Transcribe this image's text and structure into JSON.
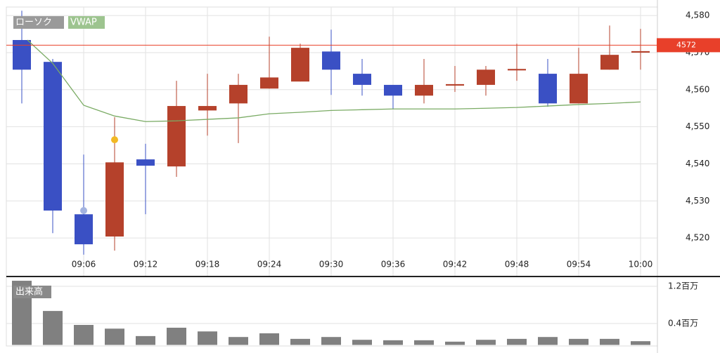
{
  "chart_data": [
    {
      "type": "candlestick",
      "categories": [
        null,
        null,
        "09:06",
        null,
        "09:12",
        null,
        "09:18",
        null,
        "09:24",
        null,
        "09:30",
        null,
        "09:36",
        null,
        "09:42",
        null,
        "09:48",
        null,
        "09:54",
        null,
        "10:00"
      ],
      "series": [
        {
          "name": "ローソク",
          "up_color": "#b5412b",
          "down_color": "#3a50c4",
          "open": [
            4573.4,
            4567.5,
            4526.4,
            4520.4,
            4541.2,
            4539.3,
            4554.4,
            4556.3,
            4560.3,
            4562.2,
            4570.3,
            4564.3,
            4561.3,
            4558.4,
            4561.1,
            4561.3,
            4565.2,
            4564.3,
            4556.3,
            4565.4,
            4570.0
          ],
          "high": [
            4581.3,
            4568.3,
            4542.5,
            4552.6,
            4545.4,
            4562.4,
            4564.3,
            4564.3,
            4574.3,
            4572.4,
            4576.2,
            4568.3,
            4561.3,
            4568.3,
            4566.4,
            4566.4,
            4572.4,
            4568.3,
            4571.3,
            4577.3,
            4576.4
          ],
          "low": [
            4556.3,
            4521.3,
            4515.5,
            4516.6,
            4526.4,
            4536.5,
            4547.6,
            4545.6,
            4560.3,
            4562.2,
            4558.6,
            4558.4,
            4554.8,
            4556.3,
            4559.4,
            4558.4,
            4562.4,
            4555.4,
            4556.3,
            4565.4,
            4565.4
          ],
          "close": [
            4565.4,
            4527.4,
            4518.3,
            4540.4,
            4539.5,
            4555.6,
            4555.6,
            4561.3,
            4563.3,
            4571.3,
            4565.4,
            4561.3,
            4558.4,
            4561.3,
            4561.5,
            4565.4,
            4565.6,
            4556.3,
            4564.3,
            4569.4,
            4570.4
          ]
        },
        {
          "name": "VWAP",
          "color": "#7aab64",
          "values": [
            4573.4,
            4567.1,
            4555.8,
            4552.9,
            4551.4,
            4551.6,
            4552.0,
            4552.4,
            4553.5,
            4553.9,
            4554.4,
            4554.6,
            4554.8,
            4554.8,
            4554.8,
            4555.0,
            4555.2,
            4555.6,
            4556.0,
            4556.3,
            4556.7
          ]
        }
      ],
      "markers": [
        {
          "color": "#a3b3e0",
          "values": [
            null,
            null,
            4527.4,
            null,
            null,
            null,
            null,
            null,
            null,
            null,
            null,
            null,
            null,
            null,
            null,
            null,
            null,
            null,
            null,
            null,
            null
          ]
        },
        {
          "color": "#f2b824",
          "values": [
            null,
            null,
            null,
            4546.5,
            null,
            null,
            null,
            null,
            null,
            null,
            null,
            null,
            null,
            null,
            null,
            null,
            null,
            null,
            null,
            null,
            null
          ]
        }
      ],
      "last_price": 4572,
      "last_price_color": "#e8402a",
      "ylim": [
        4509.8,
        4582.3
      ],
      "yticks": [
        {
          "value": 4520,
          "label": "4,520"
        },
        {
          "value": 4530,
          "label": "4,530"
        },
        {
          "value": 4540,
          "label": "4,540"
        },
        {
          "value": 4550,
          "label": "4,550"
        },
        {
          "value": 4560,
          "label": "4,560"
        },
        {
          "value": 4570,
          "label": "4,570"
        },
        {
          "value": 4580,
          "label": "4,580"
        }
      ],
      "grid": true
    },
    {
      "type": "bar",
      "title": "出来高",
      "color": "#808080",
      "values": [
        1.32,
        0.67,
        0.37,
        0.29,
        0.13,
        0.31,
        0.23,
        0.11,
        0.19,
        0.07,
        0.11,
        0.05,
        0.04,
        0.04,
        0.01,
        0.05,
        0.07,
        0.11,
        0.07,
        0.07,
        0.02
      ],
      "ylim": [
        0,
        1.366
      ],
      "yticks": [
        {
          "value": 0.4,
          "label": "0.4百万"
        },
        {
          "value": 1.2,
          "label": "1.2百万"
        }
      ],
      "grid": true
    }
  ]
}
